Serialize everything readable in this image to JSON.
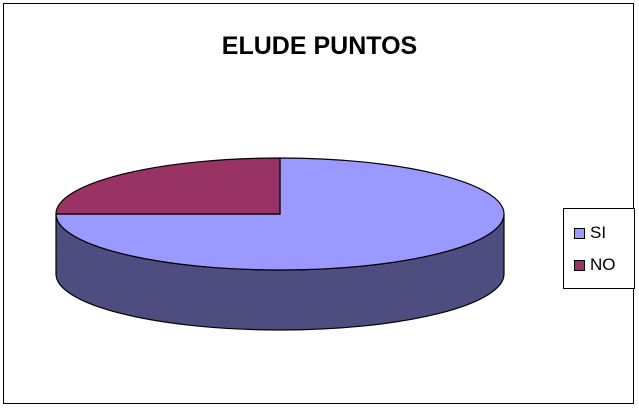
{
  "chart_data": {
    "type": "pie",
    "title": "ELUDE PUNTOS",
    "categories": [
      "SI",
      "NO"
    ],
    "values": [
      75,
      25
    ],
    "colors": [
      "#9999ff",
      "#993366"
    ],
    "side_colors": [
      "#4d4d80",
      "#4d1a33"
    ],
    "legend": "right",
    "style": "3d"
  }
}
